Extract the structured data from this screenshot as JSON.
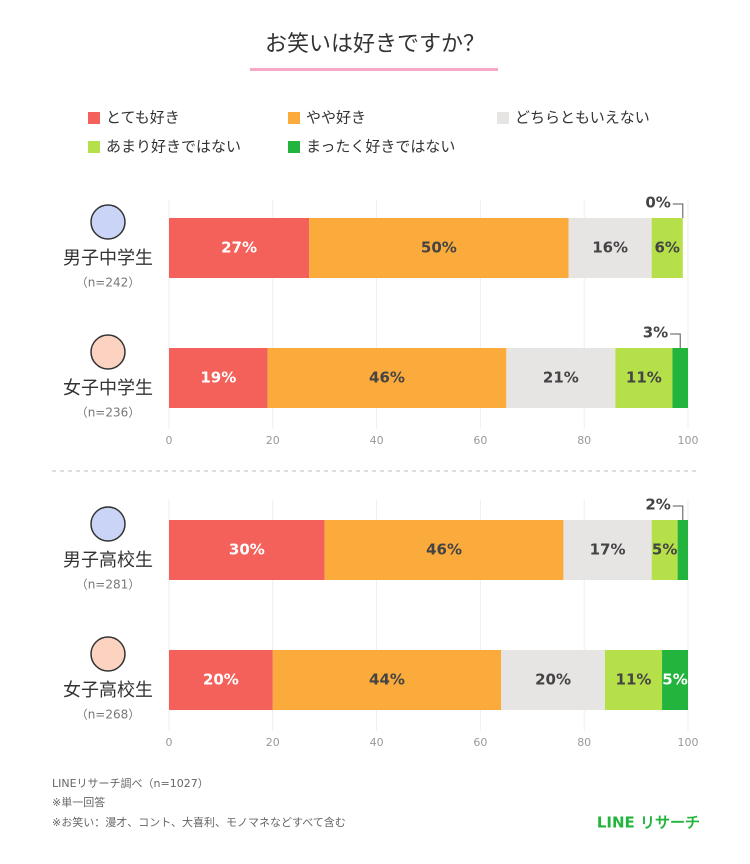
{
  "title": "お笑いは好きですか？",
  "chart_data": [
    {
      "type": "bar",
      "orientation": "horizontal",
      "categories": [
        "男子中学生",
        "女子中学生"
      ],
      "sample_sizes": [
        "（n=242）",
        "（n=236）"
      ],
      "series": [
        {
          "name": "とても好き",
          "color": "#f4605a",
          "values": [
            27,
            19
          ],
          "value_labels": [
            "27%",
            "19%"
          ]
        },
        {
          "name": "やや好き",
          "color": "#fbab3b",
          "values": [
            50,
            46
          ],
          "value_labels": [
            "50%",
            "46%"
          ]
        },
        {
          "name": "どちらともいえない",
          "color": "#e7e4e4",
          "values": [
            16,
            21
          ],
          "value_labels": [
            "16%",
            "21%"
          ]
        },
        {
          "name": "あまり好きではない",
          "color": "#b6e04a",
          "values": [
            6,
            11
          ],
          "value_labels": [
            "6%",
            "11%"
          ]
        },
        {
          "name": "まったく好きではない",
          "color": "#22b43c",
          "values": [
            0,
            3
          ],
          "value_labels": [
            "0%",
            "3%"
          ]
        }
      ],
      "xlim": [
        0,
        100
      ],
      "xticks": [
        0,
        20,
        40,
        60,
        80,
        100
      ],
      "grid": true
    },
    {
      "type": "bar",
      "orientation": "horizontal",
      "categories": [
        "男子高校生",
        "女子高校生"
      ],
      "sample_sizes": [
        "（n=281）",
        "（n=268）"
      ],
      "series": [
        {
          "values": [
            30,
            20
          ],
          "value_labels": [
            "30%",
            "20%"
          ]
        },
        {
          "values": [
            46,
            44
          ],
          "value_labels": [
            "46%",
            "44%"
          ]
        },
        {
          "values": [
            17,
            20
          ],
          "value_labels": [
            "17%",
            "20%"
          ]
        },
        {
          "values": [
            5,
            11
          ],
          "value_labels": [
            "5%",
            "11%"
          ]
        },
        {
          "values": [
            2,
            5
          ],
          "value_labels": [
            "2%",
            "5%"
          ]
        }
      ],
      "xlim": [
        0,
        100
      ],
      "xticks": [
        0,
        20,
        40,
        60,
        80,
        100
      ],
      "grid": true
    }
  ],
  "notes": [
    "LINEリサーチ調べ（n=1027）",
    "※単一回答",
    "※お笑い：漫才、コント、大喜利、モノマネなどすべて含む"
  ],
  "brand": "LINE リサーチ"
}
